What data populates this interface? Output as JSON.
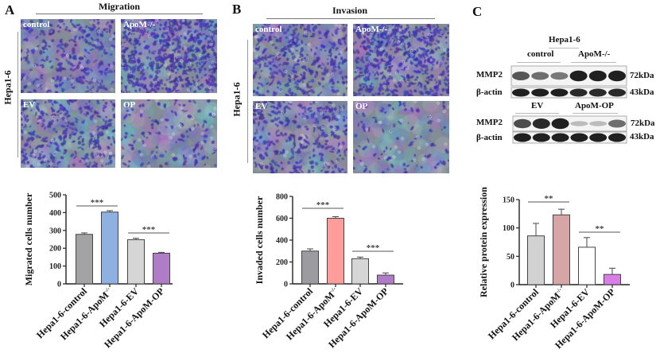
{
  "panels": {
    "A": {
      "letter": "A",
      "title": "Migration",
      "side_label": "Hepa1-6",
      "images": [
        {
          "label": "control",
          "density": 0.45
        },
        {
          "label": "ApoM-/-",
          "density": 1.0
        },
        {
          "label": "EV",
          "density": 0.5
        },
        {
          "label": "OP",
          "density": 0.2
        }
      ]
    },
    "B": {
      "letter": "B",
      "title": "Invasion",
      "side_label": "Hepa1-6",
      "images": [
        {
          "label": "control",
          "density": 0.55
        },
        {
          "label": "ApoM-/-",
          "density": 0.9
        },
        {
          "label": "EV",
          "density": 0.5
        },
        {
          "label": "OP",
          "density": 0.15
        }
      ]
    },
    "C": {
      "letter": "C",
      "blot1": {
        "cell_line": "Hepa1-6",
        "group1": "control",
        "group2": "ApoM-/-",
        "rows": [
          {
            "label": "MMP2",
            "size": "72kDa",
            "band_intensity": [
              0.7,
              0.6,
              0.55,
              0.95,
              0.95,
              0.95
            ]
          },
          {
            "label": "β-actin",
            "size": "43kDa",
            "band_intensity": [
              0.95,
              0.95,
              0.95,
              0.9,
              0.9,
              0.9
            ]
          }
        ]
      },
      "blot2": {
        "group1": "EV",
        "group2": "ApoM-OP",
        "rows": [
          {
            "label": "MMP2",
            "size": "72kDa",
            "band_intensity": [
              0.75,
              0.9,
              0.95,
              0.25,
              0.25,
              0.6
            ]
          },
          {
            "label": "β-actin",
            "size": "43kDa",
            "band_intensity": [
              0.95,
              0.95,
              0.95,
              0.95,
              0.95,
              0.95
            ]
          }
        ]
      }
    }
  },
  "chart_data": [
    {
      "type": "bar",
      "title": "",
      "xlabel": "",
      "ylabel": "Migrated cells number",
      "categories": [
        "Hepa1-6-control",
        "Hepa1-6-ApoM-/-",
        "Hepa1-6-EV",
        "Hepa1-6-ApoM-OP"
      ],
      "values": [
        278,
        403,
        248,
        172
      ],
      "errors": [
        8,
        8,
        8,
        5
      ],
      "colors": [
        "#a3a3a6",
        "#8fb1e2",
        "#d6d6d6",
        "#b07cc8"
      ],
      "ylim": [
        0,
        500
      ],
      "yticks": [
        0,
        100,
        200,
        300,
        400,
        500
      ],
      "significance": [
        {
          "pair": [
            0,
            1
          ],
          "label": "***"
        },
        {
          "pair": [
            2,
            3
          ],
          "label": "***"
        }
      ]
    },
    {
      "type": "bar",
      "title": "",
      "xlabel": "",
      "ylabel": "Invaded cells number",
      "categories": [
        "Hepa1-6-control",
        "Hepa1-6-ApoM-/-",
        "Hepa1-6-EV",
        "Hepa1-6-ApoM-OP"
      ],
      "values": [
        300,
        600,
        230,
        80
      ],
      "errors": [
        20,
        15,
        15,
        20
      ],
      "colors": [
        "#9c9ca0",
        "#ff9c9c",
        "#d6d6d6",
        "#b07cc8"
      ],
      "ylim": [
        0,
        800
      ],
      "yticks": [
        0,
        200,
        400,
        600,
        800
      ],
      "significance": [
        {
          "pair": [
            0,
            1
          ],
          "label": "***"
        },
        {
          "pair": [
            2,
            3
          ],
          "label": "***"
        }
      ]
    },
    {
      "type": "bar",
      "title": "",
      "xlabel": "",
      "ylabel": "Relative protein expression",
      "categories": [
        "Hepa1-6-control",
        "Hepa1-6-ApoM-/-",
        "Hepa1-6-EV",
        "Hepa1-6-ApoM-OP"
      ],
      "values": [
        86,
        123,
        66,
        18
      ],
      "errors": [
        22,
        10,
        17,
        11
      ],
      "colors": [
        "#d2d2d2",
        "#d6a6a6",
        "#ffffff",
        "#d97ee8"
      ],
      "ylim": [
        0,
        150
      ],
      "yticks": [
        0,
        50,
        100,
        150
      ],
      "significance": [
        {
          "pair": [
            0,
            1
          ],
          "label": "**"
        },
        {
          "pair": [
            2,
            3
          ],
          "label": "**"
        }
      ]
    }
  ]
}
